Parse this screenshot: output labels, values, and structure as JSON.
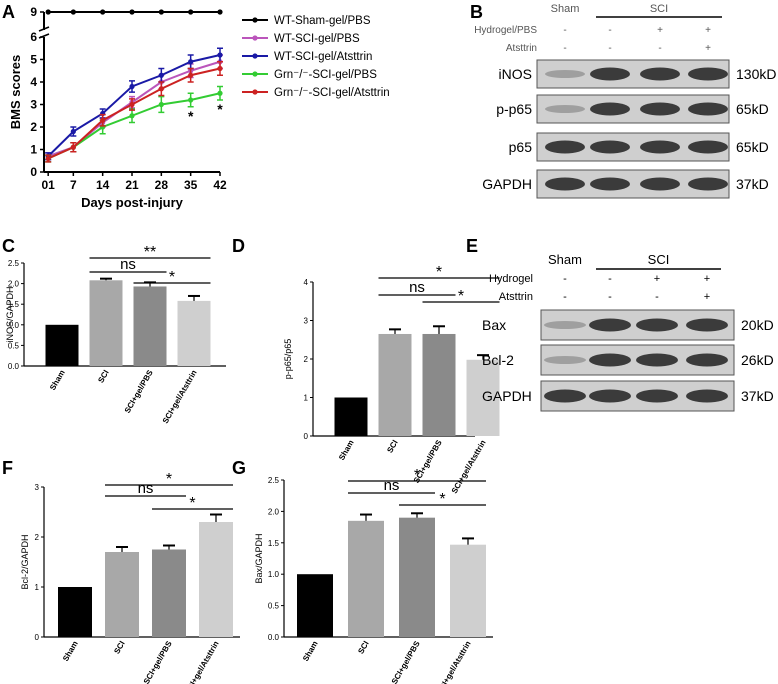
{
  "panels": {
    "A": {
      "letter": "A"
    },
    "B": {
      "letter": "B"
    },
    "C": {
      "letter": "C"
    },
    "D": {
      "letter": "D"
    },
    "E": {
      "letter": "E"
    },
    "F": {
      "letter": "F"
    },
    "G": {
      "letter": "G"
    }
  },
  "blots": {
    "B": {
      "header": {
        "groups": [
          "Sham",
          "SCI"
        ],
        "rows": [
          {
            "label": "Hydrogel/PBS",
            "marks": [
              "-",
              "-",
              "+",
              "+"
            ]
          },
          {
            "label": "Atsttrin",
            "marks": [
              "-",
              "-",
              "-",
              "+"
            ]
          }
        ]
      },
      "bands": [
        {
          "protein": "iNOS",
          "size": "130kD"
        },
        {
          "protein": "p-p65",
          "size": "65kD"
        },
        {
          "protein": "p65",
          "size": "65kD"
        },
        {
          "protein": "GAPDH",
          "size": "37kD"
        }
      ]
    },
    "E": {
      "header": {
        "groups": [
          "Sham",
          "SCI"
        ],
        "rows": [
          {
            "label": "Hydrogel",
            "marks": [
              "-",
              "-",
              "+",
              "+"
            ]
          },
          {
            "label": "Atsttrin",
            "marks": [
              "-",
              "-",
              "-",
              "+"
            ]
          }
        ]
      },
      "bands": [
        {
          "protein": "Bax",
          "size": "20kD"
        },
        {
          "protein": "Bcl-2",
          "size": "26kD"
        },
        {
          "protein": "GAPDH",
          "size": "37kD"
        }
      ]
    }
  },
  "chart_data": [
    {
      "panel": "A",
      "type": "line",
      "xlabel": "Days post-injury",
      "ylabel": "BMS scores",
      "x": [
        1,
        7,
        14,
        21,
        28,
        35,
        42
      ],
      "x_tick_labels": [
        "01",
        "7",
        "14",
        "21",
        "28",
        "35",
        "42"
      ],
      "ylim": [
        0,
        9
      ],
      "y_ticks": [
        0,
        1,
        2,
        3,
        4,
        5,
        6,
        9
      ],
      "axis_break": [
        6,
        9
      ],
      "series": [
        {
          "name": "WT-Sham-gel/PBS",
          "color": "#000000",
          "values": [
            9,
            9,
            9,
            9,
            9,
            9,
            9
          ],
          "errors": [
            0,
            0,
            0,
            0,
            0,
            0,
            0
          ]
        },
        {
          "name": "WT-SCI-gel/PBS",
          "color": "#bb55bb",
          "values": [
            0.7,
            1.1,
            2.2,
            3.1,
            4.0,
            4.5,
            4.9
          ],
          "errors": [
            0.15,
            0.2,
            0.2,
            0.25,
            0.3,
            0.3,
            0.3
          ]
        },
        {
          "name": "WT-SCI-gel/Atsttrin",
          "color": "#1a1aa6",
          "values": [
            0.7,
            1.8,
            2.6,
            3.8,
            4.3,
            4.9,
            5.2
          ],
          "errors": [
            0.15,
            0.2,
            0.2,
            0.25,
            0.3,
            0.3,
            0.3
          ]
        },
        {
          "name": "Grn⁻/⁻-SCI-gel/PBS",
          "color": "#33cc33",
          "values": [
            0.6,
            1.1,
            2.0,
            2.5,
            3.0,
            3.2,
            3.5
          ],
          "errors": [
            0.15,
            0.2,
            0.3,
            0.3,
            0.35,
            0.3,
            0.3
          ]
        },
        {
          "name": "Grn⁻/⁻-SCI-gel/Atsttrin",
          "color": "#cc2222",
          "values": [
            0.6,
            1.1,
            2.3,
            3.0,
            3.7,
            4.3,
            4.6
          ],
          "errors": [
            0.15,
            0.2,
            0.25,
            0.25,
            0.3,
            0.3,
            0.3
          ]
        }
      ],
      "annotations": [
        {
          "x": 35,
          "text": "*"
        },
        {
          "x": 42,
          "text": "*"
        }
      ]
    },
    {
      "panel": "C",
      "type": "bar",
      "ylabel": "iNOS/GAPDH",
      "categories": [
        "Sham",
        "SCI",
        "SCI+gel/PBS",
        "SCI+gel/Atsttrin"
      ],
      "values": [
        1.0,
        2.08,
        1.93,
        1.58
      ],
      "errors": [
        0,
        0.04,
        0.1,
        0.12
      ],
      "ylim": [
        0,
        2.5
      ],
      "y_ticks": [
        "0.0",
        "0.5",
        "1.0",
        "1.5",
        "2.0",
        "2.5"
      ],
      "comparisons": [
        {
          "from": 1,
          "to": 2,
          "label": "ns"
        },
        {
          "from": 1,
          "to": 3,
          "label": "**"
        },
        {
          "from": 2,
          "to": 3,
          "label": "*"
        }
      ]
    },
    {
      "panel": "D",
      "type": "bar",
      "ylabel": "p-p65/p65",
      "categories": [
        "Sham",
        "SCI",
        "SCI+gel/PBS",
        "SCI+gel/Atsttrin"
      ],
      "values": [
        1.0,
        2.65,
        2.65,
        1.98
      ],
      "errors": [
        0,
        0.12,
        0.2,
        0.12
      ],
      "ylim": [
        0,
        4
      ],
      "y_ticks": [
        "0",
        "1",
        "2",
        "3",
        "4"
      ],
      "comparisons": [
        {
          "from": 1,
          "to": 2,
          "label": "ns"
        },
        {
          "from": 1,
          "to": 3,
          "label": "*"
        },
        {
          "from": 2,
          "to": 3,
          "label": "*"
        }
      ]
    },
    {
      "panel": "F",
      "type": "bar",
      "ylabel": "Bcl-2/GAPDH",
      "categories": [
        "Sham",
        "SCI",
        "SCI+gel/PBS",
        "SCI+gel/Atsttrin"
      ],
      "values": [
        1.0,
        1.7,
        1.75,
        2.3
      ],
      "errors": [
        0,
        0.1,
        0.08,
        0.15
      ],
      "ylim": [
        0,
        3
      ],
      "y_ticks": [
        "0",
        "1",
        "2",
        "3"
      ],
      "comparisons": [
        {
          "from": 1,
          "to": 2,
          "label": "ns"
        },
        {
          "from": 1,
          "to": 3,
          "label": "*"
        },
        {
          "from": 2,
          "to": 3,
          "label": "*"
        }
      ]
    },
    {
      "panel": "G",
      "type": "bar",
      "ylabel": "Bax/GAPDH",
      "categories": [
        "Sham",
        "SCI",
        "SCI+gel/PBS",
        "SCI+gel/Atsttrin"
      ],
      "values": [
        1.0,
        1.85,
        1.9,
        1.47
      ],
      "errors": [
        0,
        0.1,
        0.07,
        0.1
      ],
      "ylim": [
        0,
        2.5
      ],
      "y_ticks": [
        "0.0",
        "0.5",
        "1.0",
        "1.5",
        "2.0",
        "2.5"
      ],
      "comparisons": [
        {
          "from": 1,
          "to": 2,
          "label": "ns"
        },
        {
          "from": 1,
          "to": 3,
          "label": "*"
        },
        {
          "from": 2,
          "to": 3,
          "label": "*"
        }
      ]
    }
  ]
}
